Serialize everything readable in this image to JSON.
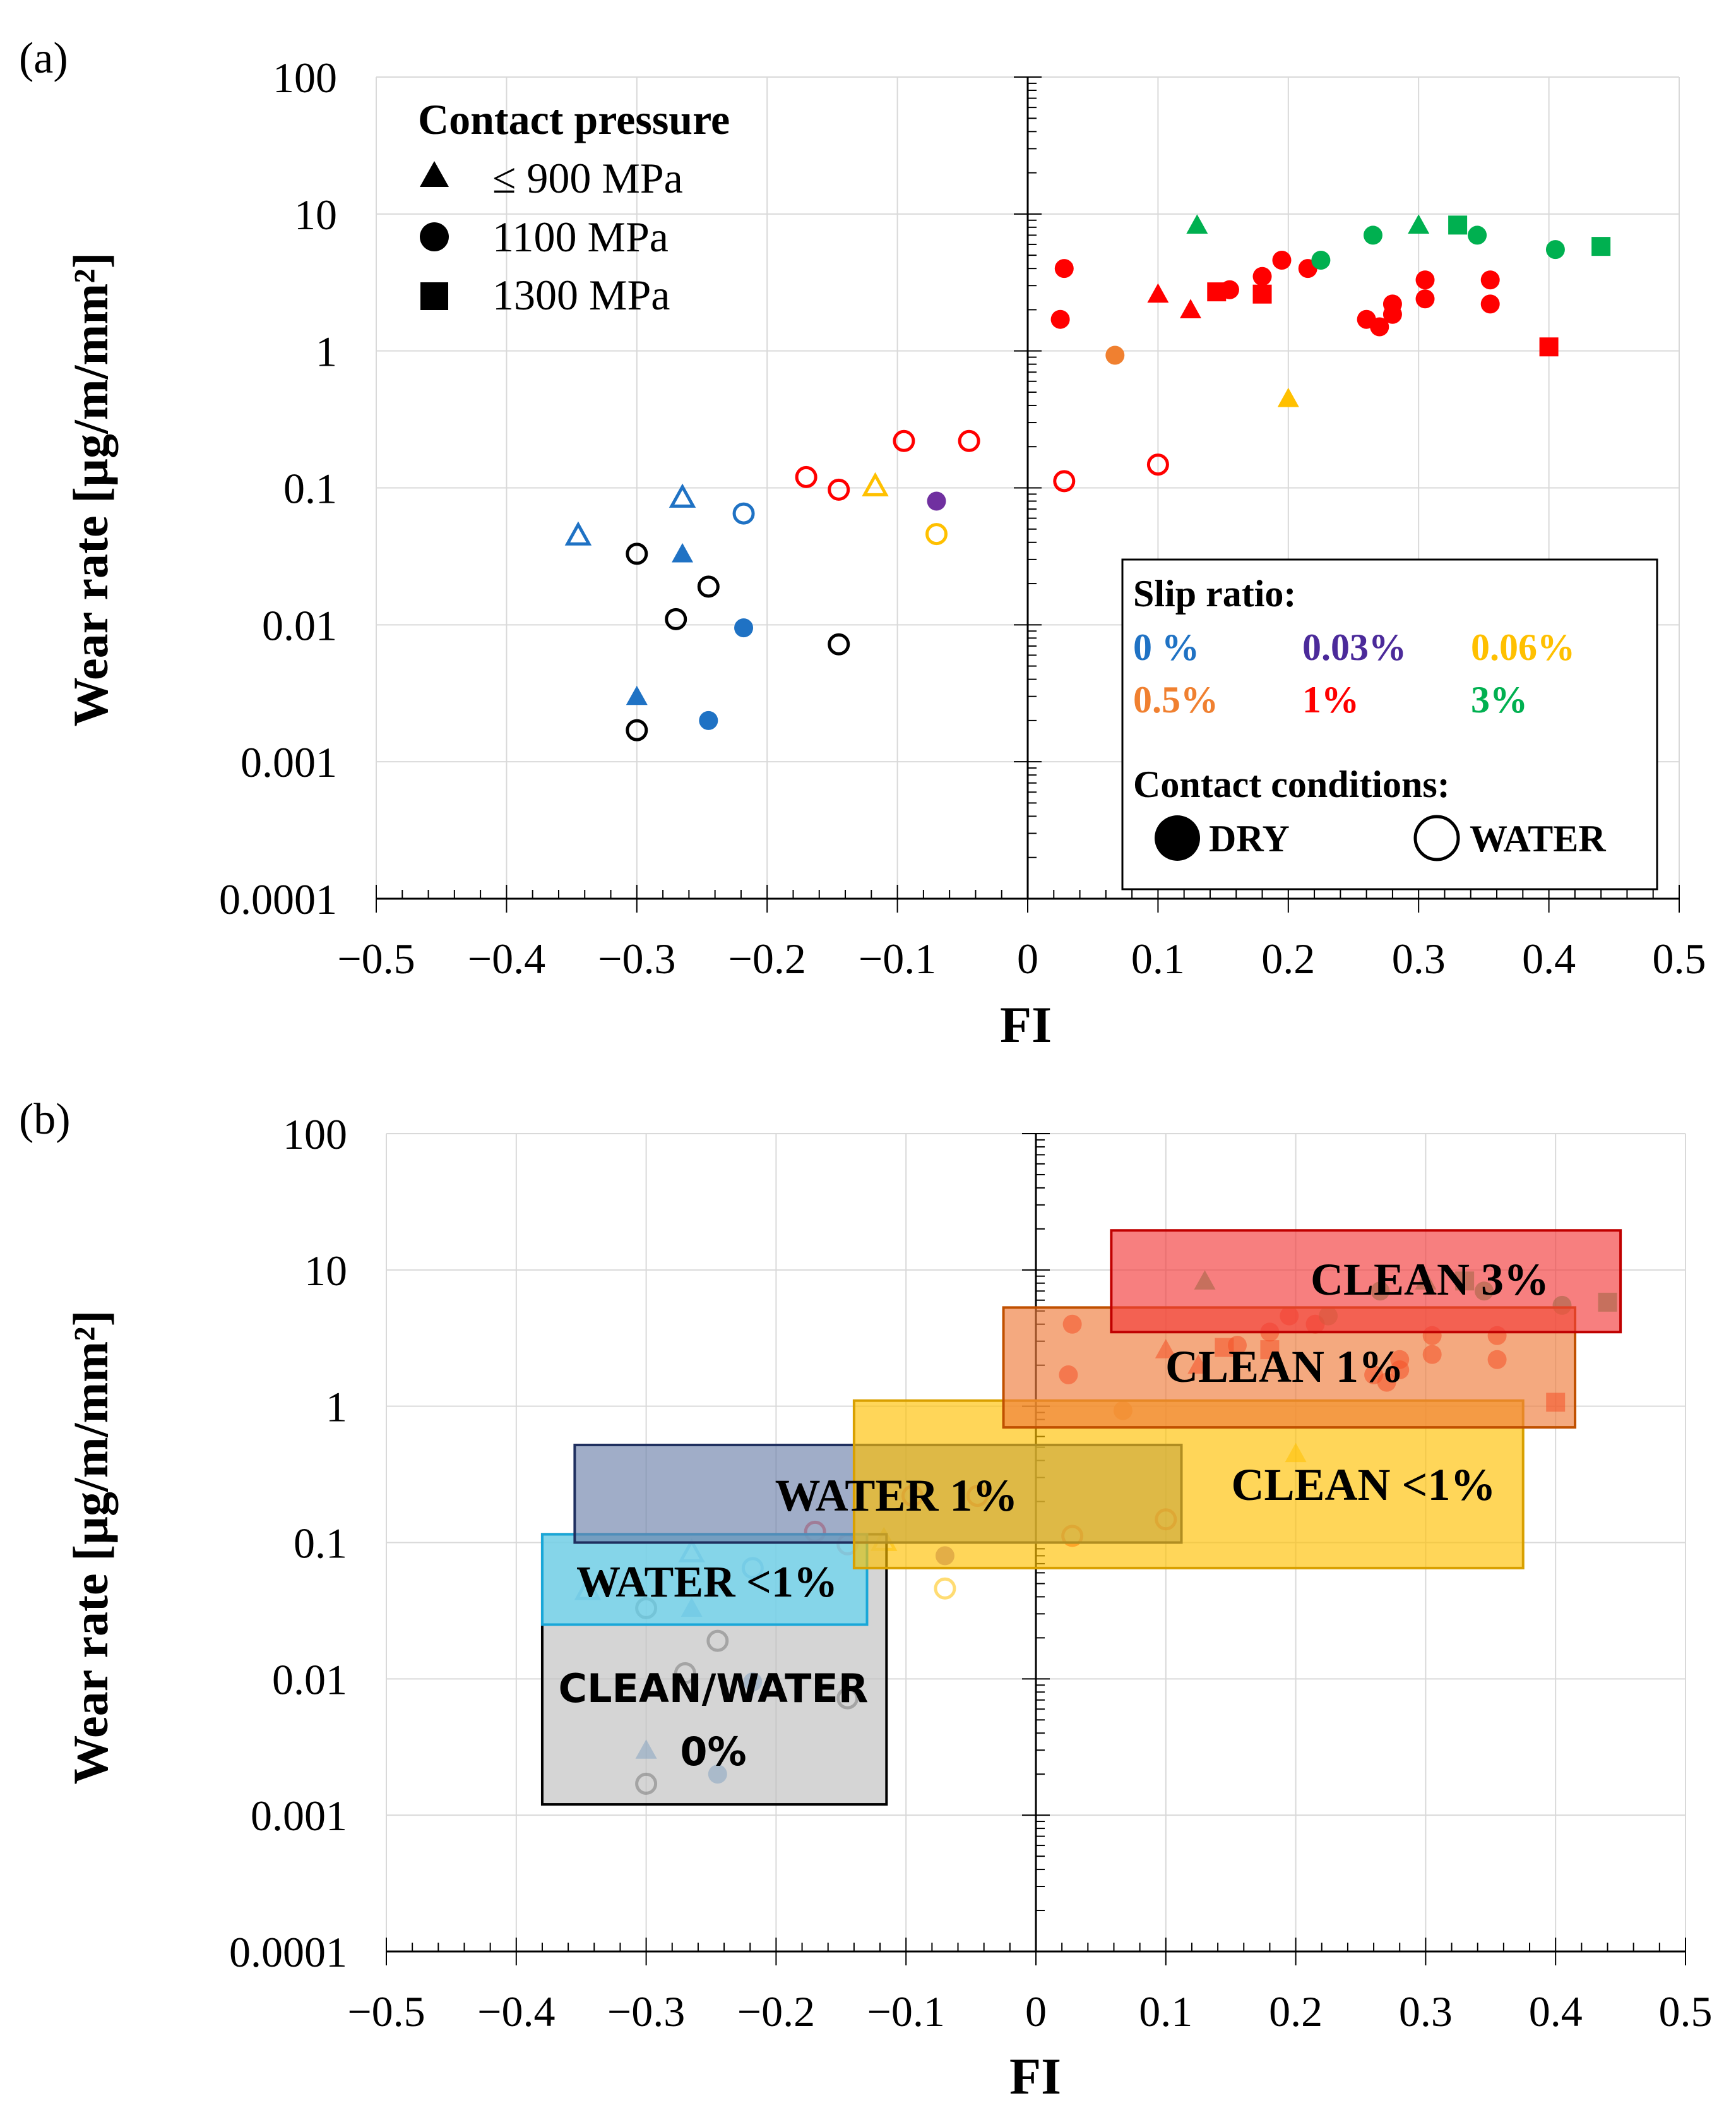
{
  "chart_data": [
    {
      "panel": "(a)",
      "type": "scatter",
      "xlabel": "FI",
      "ylabel": "Wear rate [µg/m/mm²]",
      "xlim": [
        -0.5,
        0.5
      ],
      "ylim": [
        0.0001,
        100
      ],
      "yscale": "log",
      "grid": true,
      "x_ticks": [
        "−0.5",
        "−0.4",
        "−0.3",
        "−0.2",
        "−0.1",
        "0",
        "0.1",
        "0.2",
        "0.3",
        "0.4",
        "0.5"
      ],
      "y_ticks": [
        "0.0001",
        "0.001",
        "0.01",
        "0.1",
        "1",
        "10",
        "100"
      ],
      "legend_pressure": {
        "title": "Contact pressure",
        "entries": [
          {
            "marker": "triangle",
            "label": "≤ 900 MPa"
          },
          {
            "marker": "circle",
            "label": "1100 MPa"
          },
          {
            "marker": "square",
            "label": "1300 MPa"
          }
        ]
      },
      "legend_slip": {
        "title": "Slip ratio:",
        "entries": [
          {
            "label": "0 %",
            "color": "#1f72c4"
          },
          {
            "label": "0.03%",
            "color": "#4b2a9a"
          },
          {
            "label": "0.06%",
            "color": "#ffc000"
          },
          {
            "label": "0.5%",
            "color": "#f08030"
          },
          {
            "label": "1%",
            "color": "#ff0000"
          },
          {
            "label": "3%",
            "color": "#00b050"
          }
        ],
        "conditions_title": "Contact conditions:",
        "dry_label": "DRY",
        "water_label": "WATER"
      },
      "series": [
        {
          "name": "0 % water",
          "color": "#1f72c4",
          "points": [
            {
              "x": -0.345,
              "y": 0.045,
              "m": "tri",
              "open": true
            },
            {
              "x": -0.265,
              "y": 0.085,
              "m": "tri",
              "open": true
            },
            {
              "x": -0.218,
              "y": 0.065,
              "m": "circ",
              "open": true
            }
          ]
        },
        {
          "name": "0 % dry",
          "color": "#1f72c4",
          "points": [
            {
              "x": -0.265,
              "y": 0.033,
              "m": "tri",
              "open": false
            },
            {
              "x": -0.3,
              "y": 0.003,
              "m": "tri",
              "open": false
            },
            {
              "x": -0.218,
              "y": 0.0095,
              "m": "circ",
              "open": false
            },
            {
              "x": -0.245,
              "y": 0.002,
              "m": "circ",
              "open": false
            }
          ]
        },
        {
          "name": "water, black",
          "color": "#000000",
          "points": [
            {
              "x": -0.3,
              "y": 0.033,
              "m": "circ",
              "open": true
            },
            {
              "x": -0.27,
              "y": 0.011,
              "m": "circ",
              "open": true
            },
            {
              "x": -0.245,
              "y": 0.019,
              "m": "circ",
              "open": true
            },
            {
              "x": -0.145,
              "y": 0.0072,
              "m": "circ",
              "open": true
            },
            {
              "x": -0.3,
              "y": 0.0017,
              "m": "circ",
              "open": true
            }
          ]
        },
        {
          "name": "1% water",
          "color": "#ff0000",
          "points": [
            {
              "x": -0.17,
              "y": 0.12,
              "m": "circ",
              "open": true
            },
            {
              "x": -0.145,
              "y": 0.097,
              "m": "circ",
              "open": true
            },
            {
              "x": -0.095,
              "y": 0.22,
              "m": "circ",
              "open": true
            },
            {
              "x": -0.045,
              "y": 0.22,
              "m": "circ",
              "open": true
            },
            {
              "x": 0.028,
              "y": 0.112,
              "m": "circ",
              "open": true
            },
            {
              "x": 0.1,
              "y": 0.148,
              "m": "circ",
              "open": true
            }
          ]
        },
        {
          "name": "0.06% water",
          "color": "#ffc000",
          "points": [
            {
              "x": -0.117,
              "y": 0.103,
              "m": "tri",
              "open": true
            },
            {
              "x": -0.07,
              "y": 0.046,
              "m": "circ",
              "open": true
            }
          ]
        },
        {
          "name": "0.03% dry",
          "color": "#7030a0",
          "points": [
            {
              "x": -0.07,
              "y": 0.08,
              "m": "circ",
              "open": false
            }
          ]
        },
        {
          "name": "0.06% dry",
          "color": "#ffc000",
          "points": [
            {
              "x": 0.2,
              "y": 0.45,
              "m": "tri",
              "open": false
            }
          ]
        },
        {
          "name": "0.5% dry",
          "color": "#f08030",
          "points": [
            {
              "x": 0.067,
              "y": 0.93,
              "m": "circ",
              "open": false
            }
          ]
        },
        {
          "name": "1% dry",
          "color": "#ff0000",
          "points": [
            {
              "x": 0.028,
              "y": 4.0,
              "m": "circ",
              "open": false
            },
            {
              "x": 0.025,
              "y": 1.7,
              "m": "circ",
              "open": false
            },
            {
              "x": 0.1,
              "y": 2.6,
              "m": "tri",
              "open": false
            },
            {
              "x": 0.125,
              "y": 2.0,
              "m": "tri",
              "open": false
            },
            {
              "x": 0.145,
              "y": 2.7,
              "m": "sq",
              "open": false
            },
            {
              "x": 0.155,
              "y": 2.8,
              "m": "circ",
              "open": false
            },
            {
              "x": 0.18,
              "y": 3.5,
              "m": "circ",
              "open": false
            },
            {
              "x": 0.195,
              "y": 4.6,
              "m": "circ",
              "open": false
            },
            {
              "x": 0.18,
              "y": 2.6,
              "m": "sq",
              "open": false
            },
            {
              "x": 0.215,
              "y": 4.0,
              "m": "circ",
              "open": false
            },
            {
              "x": 0.26,
              "y": 1.7,
              "m": "circ",
              "open": false
            },
            {
              "x": 0.27,
              "y": 1.5,
              "m": "circ",
              "open": false
            },
            {
              "x": 0.28,
              "y": 1.85,
              "m": "circ",
              "open": false
            },
            {
              "x": 0.28,
              "y": 2.2,
              "m": "circ",
              "open": false
            },
            {
              "x": 0.305,
              "y": 2.4,
              "m": "circ",
              "open": false
            },
            {
              "x": 0.305,
              "y": 3.3,
              "m": "circ",
              "open": false
            },
            {
              "x": 0.355,
              "y": 2.2,
              "m": "circ",
              "open": false
            },
            {
              "x": 0.355,
              "y": 3.3,
              "m": "circ",
              "open": false
            },
            {
              "x": 0.4,
              "y": 1.07,
              "m": "sq",
              "open": false
            }
          ]
        },
        {
          "name": "3% dry",
          "color": "#00b050",
          "points": [
            {
              "x": 0.13,
              "y": 8.3,
              "m": "tri",
              "open": false
            },
            {
              "x": 0.225,
              "y": 4.6,
              "m": "circ",
              "open": false
            },
            {
              "x": 0.265,
              "y": 7.0,
              "m": "circ",
              "open": false
            },
            {
              "x": 0.3,
              "y": 8.3,
              "m": "tri",
              "open": false
            },
            {
              "x": 0.33,
              "y": 8.3,
              "m": "sq",
              "open": false
            },
            {
              "x": 0.345,
              "y": 7.0,
              "m": "circ",
              "open": false
            },
            {
              "x": 0.405,
              "y": 5.5,
              "m": "circ",
              "open": false
            },
            {
              "x": 0.44,
              "y": 5.8,
              "m": "sq",
              "open": false
            }
          ]
        }
      ]
    },
    {
      "panel": "(b)",
      "type": "scatter",
      "xlabel": "FI",
      "ylabel": "Wear rate [µg/m/mm²]",
      "xlim": [
        -0.5,
        0.5
      ],
      "ylim": [
        0.0001,
        100
      ],
      "yscale": "log",
      "grid": true,
      "x_ticks": [
        "−0.5",
        "−0.4",
        "−0.3",
        "−0.2",
        "−0.1",
        "0",
        "0.1",
        "0.2",
        "0.3",
        "0.4",
        "0.5"
      ],
      "y_ticks": [
        "0.0001",
        "0.001",
        "0.01",
        "0.1",
        "1",
        "10",
        "100"
      ],
      "regions": [
        {
          "label": "CLEAN/WATER",
          "label2": "0%",
          "x": [
            -0.38,
            -0.115
          ],
          "y": [
            0.0012,
            0.115
          ],
          "fill": "#bfbfbf",
          "stroke": "#000000"
        },
        {
          "label": "WATER <1%",
          "x": [
            -0.38,
            -0.13
          ],
          "y": [
            0.025,
            0.115
          ],
          "fill": "#5bd6f5",
          "stroke": "#19a7d8"
        },
        {
          "label": "WATER 1%",
          "x": [
            -0.355,
            0.112
          ],
          "y": [
            0.1,
            0.52
          ],
          "fill": "#6d81aa",
          "stroke": "#1f2f5f"
        },
        {
          "label": "CLEAN <1%",
          "x": [
            -0.14,
            0.375
          ],
          "y": [
            0.065,
            1.1
          ],
          "fill": "#ffc000",
          "stroke": "#d9a000"
        },
        {
          "label": "CLEAN 1%",
          "x": [
            -0.025,
            0.415
          ],
          "y": [
            0.7,
            5.3
          ],
          "fill": "#ee7b3b",
          "stroke": "#c05000"
        },
        {
          "label": "CLEAN 3%",
          "x": [
            0.058,
            0.45
          ],
          "y": [
            3.5,
            19.5
          ],
          "fill": "#f33a3a",
          "stroke": "#c00000"
        }
      ]
    }
  ],
  "panel_labels": [
    "(a)",
    "(b)"
  ]
}
